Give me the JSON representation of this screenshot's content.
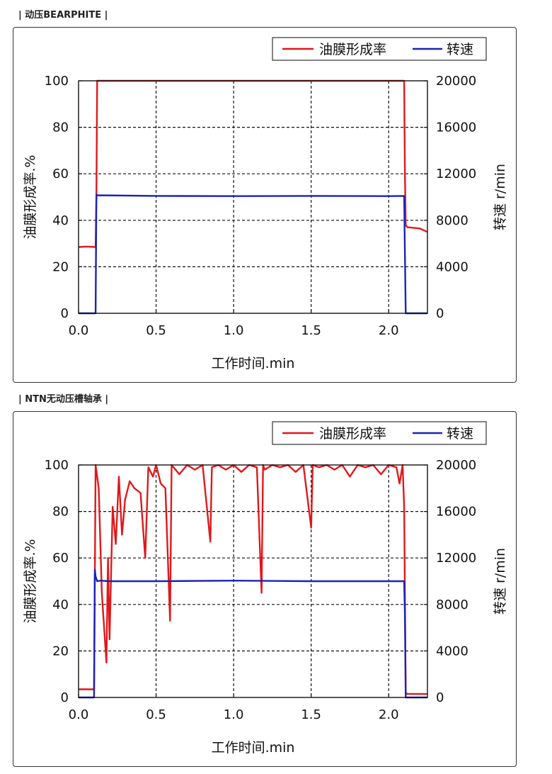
{
  "sections": [
    {
      "label": "| 动压BEARPHITE |"
    },
    {
      "label": "| NTN无动压槽轴承 |"
    }
  ],
  "colors": {
    "film": "#e0181b",
    "speed": "#1c22b8",
    "grid": "#111111"
  },
  "chart_data": [
    {
      "type": "line",
      "xlabel": "工作时间.min",
      "ylabel": "油膜形成率.%",
      "y2label": "转速   r/min",
      "xlim": [
        0,
        2.25
      ],
      "ylim": [
        0,
        100
      ],
      "y2lim": [
        0,
        20000
      ],
      "xticks": [
        "0.0",
        "0.5",
        "1.0",
        "1.5",
        "2.0"
      ],
      "yticks": [
        "0",
        "20",
        "40",
        "60",
        "80",
        "100"
      ],
      "y2ticks": [
        "0",
        "4000",
        "8000",
        "12000",
        "16000",
        "20000"
      ],
      "grid": true,
      "legend_position": "top-right",
      "series": [
        {
          "name": "油膜形成率",
          "axis": "left",
          "x": [
            0,
            0.05,
            0.11,
            0.115,
            0.12,
            0.5,
            1.0,
            1.5,
            2.0,
            2.08,
            2.1,
            2.102,
            2.105,
            2.11,
            2.12,
            2.2,
            2.25
          ],
          "y": [
            28.5,
            28.7,
            28.5,
            50,
            100,
            100,
            100,
            100,
            100,
            100,
            100,
            80,
            60,
            38,
            37,
            36.5,
            35
          ]
        },
        {
          "name": "转速",
          "axis": "right",
          "x": [
            0,
            0.11,
            0.115,
            0.12,
            0.5,
            1.0,
            1.5,
            2.0,
            2.1,
            2.105,
            2.11,
            2.25
          ],
          "y": [
            0,
            0,
            10200,
            10150,
            10100,
            10080,
            10100,
            10080,
            10100,
            5000,
            0,
            0
          ]
        }
      ]
    },
    {
      "type": "line",
      "xlabel": "工作时间.min",
      "ylabel": "油膜形成率.%",
      "y2label": "转速   r/min",
      "xlim": [
        0,
        2.25
      ],
      "ylim": [
        0,
        100
      ],
      "y2lim": [
        0,
        20000
      ],
      "xticks": [
        "0.0",
        "0.5",
        "1.0",
        "1.5",
        "2.0"
      ],
      "yticks": [
        "0",
        "20",
        "40",
        "60",
        "80",
        "100"
      ],
      "y2ticks": [
        "0",
        "4000",
        "8000",
        "12000",
        "16000",
        "20000"
      ],
      "grid": true,
      "legend_position": "top-right",
      "series": [
        {
          "name": "油膜形成率",
          "axis": "left",
          "x": [
            0,
            0.095,
            0.1,
            0.11,
            0.13,
            0.15,
            0.17,
            0.18,
            0.19,
            0.2,
            0.22,
            0.24,
            0.26,
            0.28,
            0.3,
            0.33,
            0.36,
            0.4,
            0.43,
            0.45,
            0.48,
            0.5,
            0.53,
            0.56,
            0.59,
            0.6,
            0.65,
            0.7,
            0.75,
            0.8,
            0.85,
            0.86,
            0.9,
            0.95,
            1.0,
            1.05,
            1.1,
            1.15,
            1.18,
            1.19,
            1.2,
            1.25,
            1.3,
            1.35,
            1.4,
            1.45,
            1.5,
            1.51,
            1.55,
            1.6,
            1.65,
            1.7,
            1.75,
            1.8,
            1.85,
            1.9,
            1.95,
            2.0,
            2.05,
            2.07,
            2.09,
            2.1,
            2.11,
            2.12,
            2.25
          ],
          "y": [
            3.5,
            3.5,
            3.5,
            100,
            90,
            45,
            25,
            15,
            60,
            25,
            82,
            66,
            95,
            70,
            85,
            93,
            90,
            88,
            60,
            99,
            95,
            100,
            92,
            90,
            33,
            100,
            96,
            100,
            98,
            100,
            67,
            99,
            100,
            98,
            100,
            97,
            100,
            99,
            45,
            100,
            98,
            100,
            99,
            100,
            97,
            100,
            73,
            100,
            99,
            100,
            98,
            100,
            95,
            100,
            99,
            100,
            96,
            100,
            99,
            92,
            100,
            82,
            2,
            1.5,
            1.5
          ]
        },
        {
          "name": "转速",
          "axis": "right",
          "x": [
            0,
            0.1,
            0.105,
            0.11,
            0.12,
            0.14,
            0.2,
            0.5,
            1.0,
            1.5,
            2.0,
            2.1,
            2.105,
            2.11,
            2.25
          ],
          "y": [
            0,
            0,
            11000,
            10400,
            10000,
            10050,
            10000,
            10000,
            10050,
            10000,
            10000,
            10000,
            7000,
            0,
            0
          ]
        }
      ]
    }
  ]
}
